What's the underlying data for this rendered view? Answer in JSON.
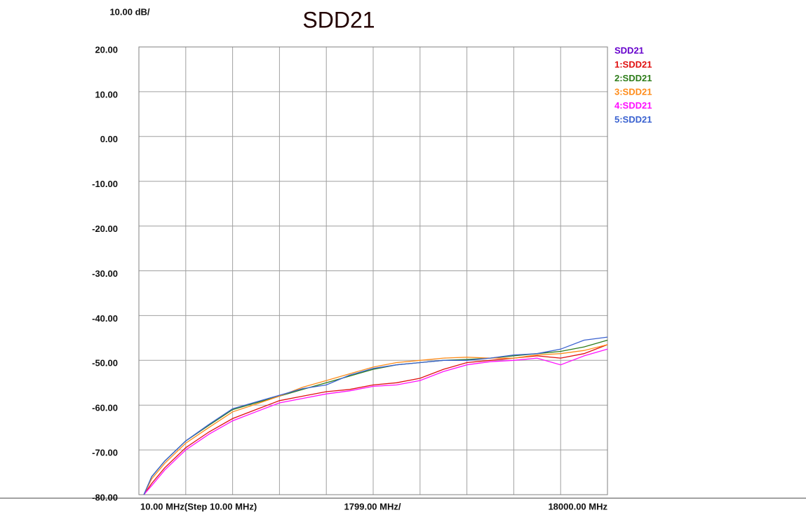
{
  "chart_data": {
    "type": "line",
    "title": "SDD21",
    "y_scale_label": "10.00 dB/",
    "x_start_label": "10.00 MHz(Step 10.00 MHz)",
    "x_scale_label": "1799.00 MHz/",
    "x_stop_label": "18000.00 MHz",
    "legend_title": "SDD21",
    "legend_title_color": "#6600cc",
    "legend": "right",
    "grid": true,
    "xlim": [
      10,
      18000
    ],
    "xticks": [
      10,
      1809,
      3608,
      5407,
      7206,
      9005,
      10804,
      12603,
      14402,
      16201,
      18000
    ],
    "ylim": [
      -80,
      20
    ],
    "yticks": [
      {
        "value": -80,
        "label": "-80.00"
      },
      {
        "value": -70,
        "label": "-70.00"
      },
      {
        "value": -60,
        "label": "-60.00"
      },
      {
        "value": -50,
        "label": "-50.00"
      },
      {
        "value": -40,
        "label": "-40.00"
      },
      {
        "value": -30,
        "label": "-30.00"
      },
      {
        "value": -20,
        "label": "-20.00"
      },
      {
        "value": -10,
        "label": "-10.00"
      },
      {
        "value": 0,
        "label": "0.00"
      },
      {
        "value": 10,
        "label": "10.00"
      },
      {
        "value": 20,
        "label": "20.00"
      }
    ],
    "x": [
      200,
      500,
      1000,
      1809,
      2700,
      3608,
      4500,
      5407,
      6300,
      7206,
      8100,
      9005,
      9900,
      10804,
      11700,
      12603,
      13500,
      14402,
      15300,
      16201,
      17100,
      18000
    ],
    "series": [
      {
        "name": "1:SDD21",
        "color": "#e01010",
        "values": [
          -80,
          -77.5,
          -74,
          -69.5,
          -66,
          -63,
          -61,
          -59,
          -58,
          -57,
          -56.5,
          -55.5,
          -55,
          -54,
          -52,
          -50.5,
          -50,
          -49.5,
          -49,
          -49.5,
          -48.5,
          -46.5
        ]
      },
      {
        "name": "2:SDD21",
        "color": "#2e7d1a",
        "values": [
          -80,
          -76,
          -72.5,
          -68,
          -64.5,
          -61,
          -59.5,
          -58,
          -56.5,
          -55,
          -53.5,
          -52,
          -51,
          -50.5,
          -50,
          -49.8,
          -49.5,
          -49,
          -48.5,
          -48,
          -47,
          -45.5
        ]
      },
      {
        "name": "3:SDD21",
        "color": "#ff8c1a",
        "values": [
          -80,
          -76.5,
          -73,
          -68.5,
          -65,
          -61.5,
          -59.8,
          -58,
          -56,
          -54.5,
          -53,
          -51.5,
          -50.5,
          -50,
          -49.5,
          -49.3,
          -49.5,
          -49.5,
          -48.8,
          -48.5,
          -47.8,
          -46.5
        ]
      },
      {
        "name": "4:SDD21",
        "color": "#ff10ff",
        "values": [
          -80,
          -78,
          -74.5,
          -70,
          -66.5,
          -63.5,
          -61.5,
          -59.5,
          -58.5,
          -57.5,
          -56.8,
          -55.8,
          -55.5,
          -54.5,
          -52.5,
          -51,
          -50.3,
          -50,
          -49.5,
          -51,
          -49,
          -47.5
        ]
      },
      {
        "name": "5:SDD21",
        "color": "#3a62d0",
        "values": [
          -80,
          -76,
          -72.5,
          -68,
          -64.3,
          -60.8,
          -59.3,
          -57.8,
          -56.3,
          -55.5,
          -53.3,
          -51.8,
          -51,
          -50.5,
          -50,
          -50,
          -49.5,
          -48.8,
          -48.5,
          -47.5,
          -45.5,
          -44.8
        ]
      }
    ]
  }
}
